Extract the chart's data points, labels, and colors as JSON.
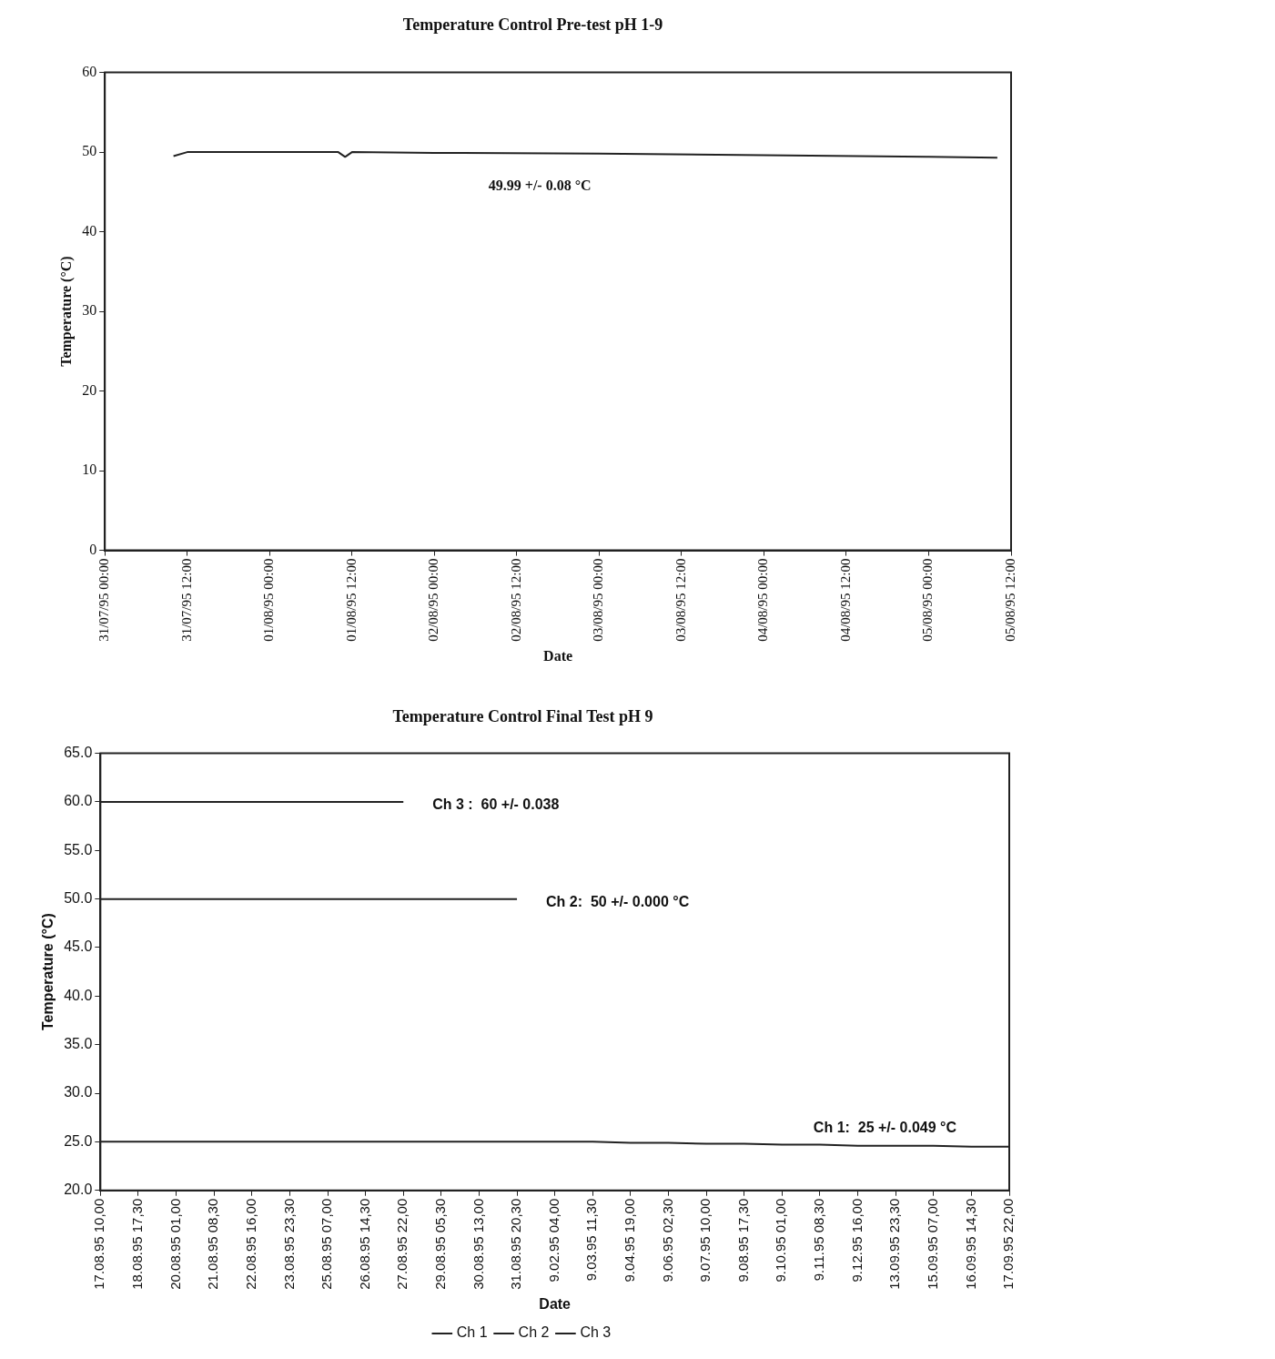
{
  "chart_data": [
    {
      "type": "line",
      "title": "Temperature Control Pre-test pH 1-9",
      "xlabel": "Date",
      "ylabel": "Temperature (°C)",
      "color": "#222222",
      "x": [
        "1995-07-31T10:00",
        "1995-07-31T12:00",
        "1995-08-01T10:00",
        "1995-08-01T11:00",
        "1995-08-01T12:00",
        "1995-08-02T00:00",
        "1995-08-03T00:00",
        "1995-08-04T00:00",
        "1995-08-05T00:00",
        "1995-08-05T10:00"
      ],
      "values": [
        49.5,
        50.0,
        50.0,
        49.4,
        50.0,
        49.9,
        49.8,
        49.6,
        49.4,
        49.3
      ],
      "xlim": [
        "1995-07-31T00:00",
        "1995-08-05T12:00"
      ],
      "xticks": [
        {
          "value": "1995-07-31T00:00",
          "label": "31/07/95 00:00"
        },
        {
          "value": "1995-07-31T12:00",
          "label": "31/07/95 12:00"
        },
        {
          "value": "1995-08-01T00:00",
          "label": "01/08/95 00:00"
        },
        {
          "value": "1995-08-01T12:00",
          "label": "01/08/95 12:00"
        },
        {
          "value": "1995-08-02T00:00",
          "label": "02/08/95 00:00"
        },
        {
          "value": "1995-08-02T12:00",
          "label": "02/08/95 12:00"
        },
        {
          "value": "1995-08-03T00:00",
          "label": "03/08/95 00:00"
        },
        {
          "value": "1995-08-03T12:00",
          "label": "03/08/95 12:00"
        },
        {
          "value": "1995-08-04T00:00",
          "label": "04/08/95 00:00"
        },
        {
          "value": "1995-08-04T12:00",
          "label": "04/08/95 12:00"
        },
        {
          "value": "1995-08-05T00:00",
          "label": "05/08/95 00:00"
        },
        {
          "value": "1995-08-05T12:00",
          "label": "05/08/95 12:00"
        }
      ],
      "ylim": [
        0,
        60
      ],
      "yticks": [
        0,
        10,
        20,
        30,
        40,
        50,
        60
      ],
      "grid": false,
      "legend": false,
      "annotations": [
        "49.99 +/- 0.08 °C"
      ]
    },
    {
      "type": "line",
      "title": "Temperature Control Final Test pH 9",
      "xlabel": "Date",
      "ylabel": "Temperature (°C)",
      "categories": [
        "17.08.95 10,00",
        "18.08.95 17,30",
        "20.08.95 01,00",
        "21.08.95 08,30",
        "22.08.95 16,00",
        "23.08.95 23,30",
        "25.08.95 07,00",
        "26.08.95 14,30",
        "27.08.95 22,00",
        "29.08.95 05,30",
        "30.08.95 13,00",
        "31.08.95 20,30",
        "9.02.95 04,00",
        "9.03.95 11,30",
        "9.04.95 19,00",
        "9.06.95 02,30",
        "9.07.95 10,00",
        "9.08.95 17,30",
        "9.10.95 01,00",
        "9.11.95 08,30",
        "9.12.95 16,00",
        "13.09.95 23,30",
        "15.09.95 07,00",
        "16.09.95 14,30",
        "17.09.95 22,00"
      ],
      "series": [
        {
          "name": "Ch 1",
          "color": "#222222",
          "values": [
            25.0,
            25.0,
            25.0,
            25.0,
            25.0,
            25.0,
            25.0,
            25.0,
            25.0,
            25.0,
            25.0,
            25.0,
            25.0,
            25.0,
            24.9,
            24.9,
            24.8,
            24.8,
            24.7,
            24.7,
            24.6,
            24.6,
            24.6,
            24.5,
            24.5
          ]
        },
        {
          "name": "Ch 2",
          "color": "#222222",
          "values": [
            50,
            50,
            50,
            50,
            50,
            50,
            50,
            50,
            50,
            50,
            50,
            50,
            null,
            null,
            null,
            null,
            null,
            null,
            null,
            null,
            null,
            null,
            null,
            null,
            null
          ]
        },
        {
          "name": "Ch 3",
          "color": "#222222",
          "values": [
            60,
            60,
            60,
            60,
            60,
            60,
            60,
            60,
            60,
            null,
            null,
            null,
            null,
            null,
            null,
            null,
            null,
            null,
            null,
            null,
            null,
            null,
            null,
            null,
            null
          ]
        }
      ],
      "ylim": [
        20,
        65
      ],
      "yticks": [
        {
          "value": 20,
          "label": "20.0"
        },
        {
          "value": 25,
          "label": "25.0"
        },
        {
          "value": 30,
          "label": "30.0"
        },
        {
          "value": 35,
          "label": "35.0"
        },
        {
          "value": 40,
          "label": "40.0"
        },
        {
          "value": 45,
          "label": "45.0"
        },
        {
          "value": 50,
          "label": "50.0"
        },
        {
          "value": 55,
          "label": "55.0"
        },
        {
          "value": 60,
          "label": "60.0"
        },
        {
          "value": 65,
          "label": "65.0"
        }
      ],
      "grid": false,
      "legend": "bottom",
      "annotations": [
        "Ch 3 :  60 +/- 0.038",
        "Ch 2:  50 +/- 0.000 °C",
        "Ch 1:  25 +/- 0.049 °C"
      ]
    }
  ]
}
